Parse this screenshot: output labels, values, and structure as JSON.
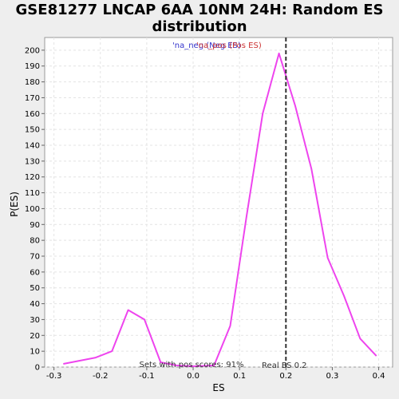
{
  "title_line1": "GSE81277 LNCAP 6AA 10NM 24H: Random ES",
  "title_line2": "distribution",
  "chart_data": {
    "type": "line",
    "xlabel": "ES",
    "ylabel": "P(ES)",
    "xlim": [
      -0.32,
      0.43
    ],
    "ylim": [
      0,
      208
    ],
    "xticks": [
      -0.3,
      -0.2,
      -0.1,
      0.0,
      0.1,
      0.2,
      0.3,
      0.4
    ],
    "xtick_labels": [
      "-0.3",
      "-0.2",
      "-0.1",
      "0.0",
      "0.1",
      "0.2",
      "0.3",
      "0.4"
    ],
    "yticks": [
      0,
      10,
      20,
      30,
      40,
      50,
      60,
      70,
      80,
      90,
      100,
      110,
      120,
      130,
      140,
      150,
      160,
      170,
      180,
      190,
      200
    ],
    "grid": true,
    "legend": {
      "placement": "top-center",
      "entries": [
        {
          "label": "'na_neg (Neg ES)",
          "color": "#3333cc"
        },
        {
          "label": "'na_pos (Pos ES)",
          "color": "#cc3333"
        }
      ]
    },
    "series": [
      {
        "color": "#ee44ee",
        "x": [
          -0.28,
          -0.21,
          -0.175,
          -0.14,
          -0.105,
          -0.07,
          -0.035,
          0.0,
          0.045,
          0.08,
          0.115,
          0.15,
          0.185,
          0.22,
          0.255,
          0.29,
          0.325,
          0.36,
          0.395
        ],
        "y": [
          2,
          6,
          10,
          36,
          30,
          3,
          1,
          0.5,
          1,
          26,
          95,
          160,
          198,
          165,
          125,
          69,
          45,
          18,
          7
        ]
      }
    ],
    "real_es": {
      "x": 0.2,
      "label": "Real ES 0.2"
    },
    "annotation": "Sets with pos scores: 91%"
  }
}
